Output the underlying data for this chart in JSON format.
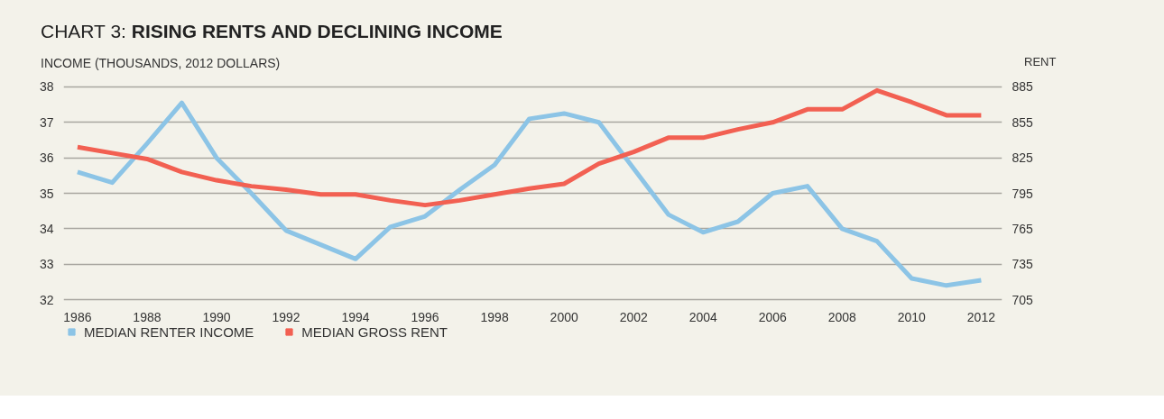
{
  "chart_data": {
    "type": "line",
    "title": "CHART 3: RISING RENTS AND DECLINING INCOME",
    "ylabel": "INCOME (THOUSANDS, 2012 DOLLARS)",
    "y2label": "RENT",
    "x": [
      1986,
      1987,
      1988,
      1989,
      1990,
      1991,
      1992,
      1993,
      1994,
      1995,
      1996,
      1997,
      1998,
      1999,
      2000,
      2001,
      2002,
      2003,
      2004,
      2005,
      2006,
      2007,
      2008,
      2009,
      2010,
      2011,
      2012
    ],
    "series": [
      {
        "name": "MEDIAN RENTER INCOME",
        "color": "#8cc4e6",
        "values": [
          35.6,
          35.3,
          36.4,
          37.55,
          36.0,
          35.0,
          33.95,
          33.55,
          33.15,
          34.05,
          34.35,
          35.1,
          35.8,
          37.1,
          37.25,
          37.0,
          35.7,
          34.4,
          33.9,
          34.2,
          35.0,
          35.2,
          34.0,
          33.65,
          32.6,
          32.4,
          32.55
        ]
      },
      {
        "name": "MEDIAN GROSS RENT",
        "color": "#f26052",
        "axis": "y2",
        "values": [
          834,
          829,
          824,
          813,
          806,
          801,
          798,
          794,
          794,
          789,
          785,
          789,
          794,
          799,
          803,
          820,
          830,
          842,
          842,
          849,
          855,
          866,
          866,
          882,
          872,
          861,
          861
        ]
      }
    ],
    "xlim": [
      1985.6,
      2012.6
    ],
    "xticks": [
      1986,
      1988,
      1990,
      1992,
      1994,
      1996,
      1998,
      2000,
      2002,
      2004,
      2006,
      2008,
      2010,
      2012
    ],
    "ylim": [
      32,
      38
    ],
    "yticks": [
      32,
      33,
      34,
      35,
      36,
      37,
      38
    ],
    "y2lim": [
      705,
      885
    ],
    "y2ticks": [
      705,
      735,
      765,
      795,
      825,
      855,
      885
    ],
    "grid": "y",
    "legend": "bottom",
    "marker": "none",
    "line_style": "solid"
  }
}
